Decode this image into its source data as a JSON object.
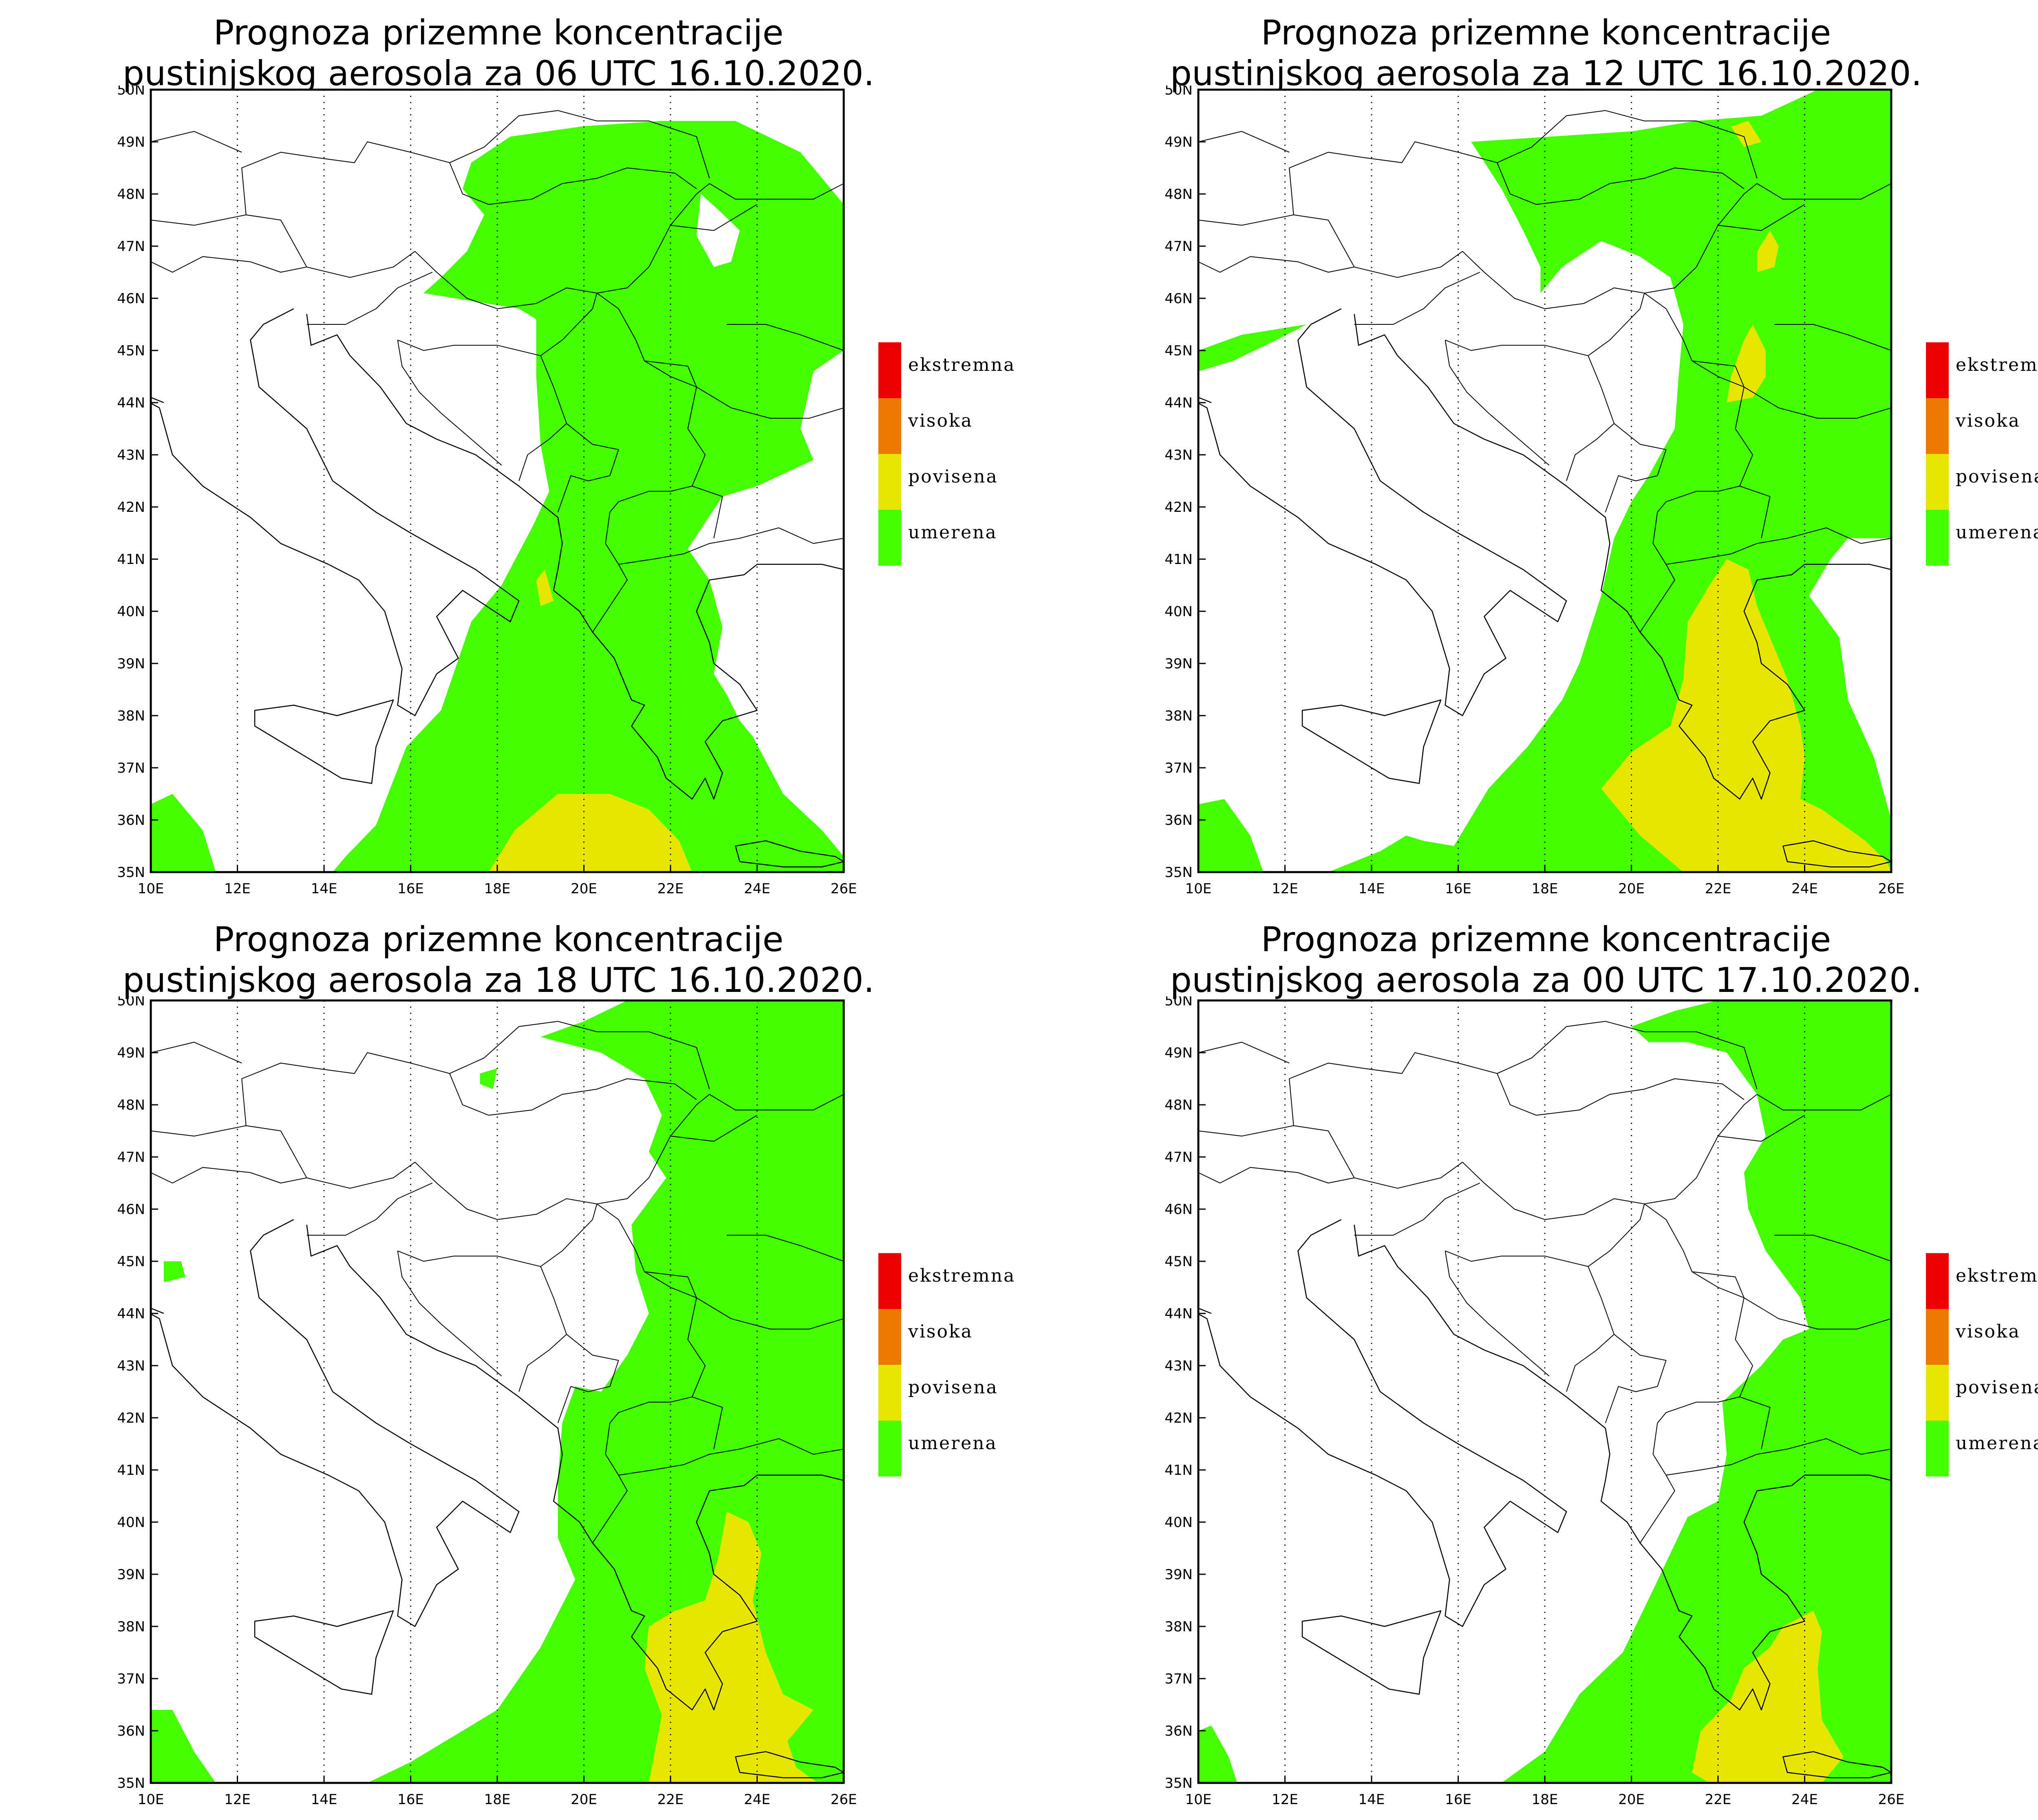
{
  "colors": {
    "ekstremna": "#ee0000",
    "visoka": "#ee7700",
    "povisena": "#e6e600",
    "umerena": "#44ff00"
  },
  "panels": [
    {
      "title_line1": "Prognoza prizemne koncentracije",
      "title_line2": "pustinjskog aerosola za 06 UTC 16.10.2020."
    },
    {
      "title_line1": "Prognoza prizemne koncentracije",
      "title_line2": "pustinjskog aerosola za 12 UTC 16.10.2020."
    },
    {
      "title_line1": "Prognoza prizemne koncentracije",
      "title_line2": "pustinjskog aerosola za 18 UTC 16.10.2020."
    },
    {
      "title_line1": "Prognoza prizemne koncentracije",
      "title_line2": "pustinjskog aerosola za 00 UTC 17.10.2020."
    }
  ],
  "legend": {
    "items": [
      {
        "key": "ekstremna",
        "label": "ekstremna",
        "color": "#ee0000"
      },
      {
        "key": "visoka",
        "label": "visoka",
        "color": "#ee7700"
      },
      {
        "key": "povisena",
        "label": "povisena",
        "color": "#e6e600"
      },
      {
        "key": "umerena",
        "label": "umerena",
        "color": "#44ff00"
      }
    ]
  },
  "axes": {
    "lon_labels": [
      "10E",
      "12E",
      "14E",
      "16E",
      "18E",
      "20E",
      "22E",
      "24E",
      "26E"
    ],
    "lat_labels": [
      "35N",
      "36N",
      "37N",
      "38N",
      "39N",
      "40N",
      "41N",
      "42N",
      "43N",
      "44N",
      "45N",
      "46N",
      "47N",
      "48N",
      "49N",
      "50N"
    ],
    "lon_range": [
      10,
      26
    ],
    "lat_range": [
      35,
      50
    ]
  }
}
